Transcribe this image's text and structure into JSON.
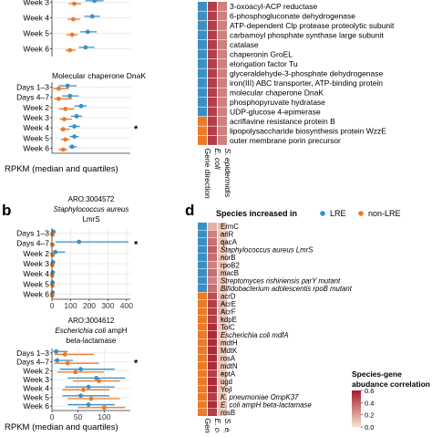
{
  "panel_labels": {
    "b": "b",
    "d": "d"
  },
  "rpkm_label": "RPKM (median and quartiles)",
  "gene_direction_label": "Gene direction",
  "heatmap_column_labels": [
    "E. coli",
    "S. epidermidis"
  ],
  "heatmap_column_labels_bottom": [
    "E. coli",
    "S. epide"
  ],
  "gene_direction_label_bottom": "Gene di",
  "colors": {
    "lre": "#3b8fc4",
    "non_lre": "#ec7a27",
    "grid": "#ebebeb",
    "heat_low": "#f3dcc4",
    "heat_high": "#a01c2c"
  },
  "chart_data": [
    {
      "type": "scatter",
      "title": "",
      "categories": [
        "Week 3",
        "Week 4",
        "Week 5",
        "Week 6"
      ],
      "series": [
        {
          "name": "LRE",
          "values": [
            380,
            360,
            320,
            300
          ],
          "low": [
            300,
            290,
            250,
            240
          ],
          "high": [
            460,
            430,
            400,
            380
          ]
        },
        {
          "name": "non-LRE",
          "values": [
            200,
            190,
            180,
            160
          ],
          "low": [
            150,
            140,
            130,
            120
          ],
          "high": [
            260,
            250,
            230,
            210
          ]
        }
      ],
      "xlim": [
        0,
        700
      ]
    },
    {
      "type": "scatter",
      "title": "Molecular chaperone DnaK",
      "categories": [
        "Days 1–3",
        "Days 4–7",
        "Week 2",
        "Week 3",
        "Week 4",
        "Week 5",
        "Week 6"
      ],
      "series": [
        {
          "name": "LRE",
          "values": [
            140,
            160,
            260,
            220,
            200,
            200,
            180
          ],
          "low": [
            60,
            90,
            200,
            170,
            150,
            160,
            150
          ],
          "high": [
            220,
            240,
            310,
            270,
            250,
            240,
            220
          ]
        },
        {
          "name": "non-LRE",
          "values": [
            60,
            60,
            120,
            110,
            100,
            120,
            100
          ],
          "low": [
            10,
            20,
            60,
            70,
            70,
            80,
            60
          ],
          "high": [
            150,
            180,
            200,
            180,
            160,
            160,
            140
          ]
        }
      ],
      "markers": [
        "",
        "",
        "",
        "",
        "*",
        "",
        ""
      ],
      "xlim": [
        0,
        700
      ]
    },
    {
      "type": "scatter",
      "title": "ARO:3004572",
      "subtitle": "Staphylococcus aureus",
      "gene": "LmrS",
      "categories": [
        "Days 1–3",
        "Days 4–7",
        "Week 2",
        "Week 3",
        "Week 4",
        "Week 5",
        "Week 6"
      ],
      "series": [
        {
          "name": "LRE",
          "values": [
            8,
            145,
            18,
            6,
            5,
            4,
            4
          ],
          "low": [
            2,
            20,
            4,
            2,
            1,
            1,
            1
          ],
          "high": [
            18,
            410,
            70,
            14,
            10,
            8,
            8
          ]
        },
        {
          "name": "non-LRE",
          "values": [
            3,
            3,
            4,
            2,
            2,
            3,
            2
          ],
          "low": [
            1,
            1,
            1,
            1,
            1,
            1,
            1
          ],
          "high": [
            6,
            10,
            8,
            5,
            5,
            6,
            5
          ]
        }
      ],
      "markers": [
        "",
        "*",
        "",
        "",
        "",
        "",
        ""
      ],
      "xticks": [
        0,
        100,
        200,
        300,
        400
      ],
      "xlim": [
        0,
        420
      ]
    },
    {
      "type": "scatter",
      "title": "ARO:3004612",
      "subtitle": "Escherichia coli",
      "gene": "ampH",
      "gene_suffix": "beta-lactamase",
      "categories": [
        "Days 1–3",
        "Days 4–7",
        "Week 2",
        "Week 3",
        "Week 4",
        "Week 5",
        "Week 6"
      ],
      "series": [
        {
          "name": "LRE",
          "values": [
            8,
            10,
            55,
            85,
            70,
            55,
            70
          ],
          "low": [
            2,
            3,
            15,
            30,
            25,
            20,
            30
          ],
          "high": [
            30,
            40,
            120,
            140,
            120,
            110,
            120
          ]
        },
        {
          "name": "non-LRE",
          "values": [
            25,
            30,
            45,
            90,
            60,
            75,
            100
          ],
          "low": [
            5,
            5,
            10,
            40,
            20,
            30,
            50
          ],
          "high": [
            80,
            90,
            100,
            130,
            110,
            130,
            140
          ]
        }
      ],
      "markers": [
        "",
        "*",
        "",
        "",
        "",
        "",
        ""
      ],
      "xticks": [
        0,
        50,
        100
      ],
      "xlim": [
        0,
        150
      ]
    },
    {
      "type": "heatmap",
      "rows": [
        {
          "label": "3-oxoacyl-ACP reductase",
          "direction": "LRE",
          "values": [
            0.5,
            0.3
          ]
        },
        {
          "label": "6-phosphogluconate dehydrogenase",
          "direction": "LRE",
          "values": [
            0.5,
            0.3
          ]
        },
        {
          "label": "ATP-dependent Clp protease proteolytic subunit",
          "direction": "LRE",
          "values": [
            0.5,
            0.3
          ]
        },
        {
          "label": "carbamoyl phosphate synthase large subunit",
          "direction": "LRE",
          "values": [
            0.5,
            0.3
          ]
        },
        {
          "label": "catalase",
          "direction": "LRE",
          "values": [
            0.5,
            0.3
          ]
        },
        {
          "label": "chaperonin GroEL",
          "direction": "LRE",
          "values": [
            0.5,
            0.3
          ]
        },
        {
          "label": "elongation factor Tu",
          "direction": "LRE",
          "values": [
            0.5,
            0.3
          ]
        },
        {
          "label": "glyceraldehyde-3-phosphate dehydrogenase",
          "direction": "LRE",
          "values": [
            0.5,
            0.3
          ]
        },
        {
          "label": "iron(III) ABC transporter, ATP-binding protein",
          "direction": "LRE",
          "values": [
            0.5,
            0.3
          ]
        },
        {
          "label": "molecular chaperone DnaK",
          "direction": "LRE",
          "values": [
            0.5,
            0.3
          ]
        },
        {
          "label": "phosphopyruvate hydratase",
          "direction": "LRE",
          "values": [
            0.5,
            0.3
          ]
        },
        {
          "label": "UDP-glucose 4-epimerase",
          "direction": "LRE",
          "values": [
            0.5,
            0.3
          ]
        },
        {
          "label": "acriflavine resistance protein B",
          "direction": "non-LRE",
          "values": [
            0.5,
            0.3
          ]
        },
        {
          "label": "lipopolysaccharide biosynthesis protein WzzE",
          "direction": "non-LRE",
          "values": [
            0.5,
            0.3
          ]
        },
        {
          "label": "outer membrane porin precursor",
          "direction": "non-LRE",
          "values": [
            0.5,
            0.3
          ]
        }
      ]
    },
    {
      "type": "heatmap",
      "legend_title": "Species increased in",
      "legend_items": [
        "LRE",
        "non-LRE"
      ],
      "rows": [
        {
          "label": "ErmC",
          "direction": "LRE",
          "values": [
            0.15,
            0.1
          ],
          "marks": [
            "",
            ""
          ]
        },
        {
          "label": "arlR",
          "direction": "LRE",
          "values": [
            0.3,
            0.1
          ],
          "marks": [
            "",
            "*"
          ]
        },
        {
          "label": "qacA",
          "direction": "LRE",
          "values": [
            0.35,
            0.1
          ],
          "marks": [
            "",
            "*"
          ]
        },
        {
          "label": "Staphylococcus aureus LmrS",
          "direction": "LRE",
          "values": [
            0.4,
            0.1
          ],
          "marks": [
            "",
            "*"
          ]
        },
        {
          "label": "norB",
          "direction": "LRE",
          "values": [
            0.35,
            0.1
          ],
          "marks": [
            "",
            "*"
          ]
        },
        {
          "label": "rpoB2",
          "direction": "LRE",
          "values": [
            0.3,
            0.1
          ],
          "marks": [
            "",
            ""
          ]
        },
        {
          "label": "macB",
          "direction": "LRE",
          "values": [
            0.35,
            0.1
          ],
          "marks": [
            "",
            ""
          ]
        },
        {
          "label": "Streptomyces rishiriensis parY mutant",
          "direction": "LRE",
          "values": [
            0.3,
            0.1
          ],
          "marks": [
            "",
            ""
          ]
        },
        {
          "label": "Bifidobacterium adolescentis rpoB mutant",
          "direction": "LRE",
          "values": [
            0.35,
            0.1
          ],
          "marks": [
            "",
            ""
          ]
        },
        {
          "label": "acrD",
          "direction": "non-LRE",
          "values": [
            0.45,
            0.1
          ],
          "marks": [
            "",
            ""
          ]
        },
        {
          "label": "AcrE",
          "direction": "non-LRE",
          "values": [
            0.5,
            0.15
          ],
          "marks": [
            "",
            "*"
          ]
        },
        {
          "label": "AcrF",
          "direction": "non-LRE",
          "values": [
            0.5,
            0.15
          ],
          "marks": [
            "",
            "*"
          ]
        },
        {
          "label": "kdpE",
          "direction": "non-LRE",
          "values": [
            0.5,
            0.1
          ],
          "marks": [
            "",
            "*"
          ]
        },
        {
          "label": "TolC",
          "direction": "non-LRE",
          "values": [
            0.55,
            0.1
          ],
          "marks": [
            "",
            ""
          ]
        },
        {
          "label": "Escherichia coli mdfA",
          "direction": "non-LRE",
          "values": [
            0.55,
            0.1
          ],
          "marks": [
            "",
            ""
          ]
        },
        {
          "label": "mdtH",
          "direction": "non-LRE",
          "values": [
            0.55,
            0.1
          ],
          "marks": [
            "",
            ""
          ]
        },
        {
          "label": "MdtK",
          "direction": "non-LRE",
          "values": [
            0.55,
            0.1
          ],
          "marks": [
            "",
            ""
          ]
        },
        {
          "label": "rosA",
          "direction": "non-LRE",
          "values": [
            0.55,
            0.1
          ],
          "marks": [
            "",
            ""
          ]
        },
        {
          "label": "mdtN",
          "direction": "non-LRE",
          "values": [
            0.55,
            0.1
          ],
          "marks": [
            "",
            ""
          ]
        },
        {
          "label": "eptA",
          "direction": "non-LRE",
          "values": [
            0.5,
            0.1
          ],
          "marks": [
            "",
            "*"
          ]
        },
        {
          "label": "ugd",
          "direction": "non-LRE",
          "values": [
            0.55,
            0.1
          ],
          "marks": [
            "",
            ""
          ]
        },
        {
          "label": "YojI",
          "direction": "non-LRE",
          "values": [
            0.55,
            0.1
          ],
          "marks": [
            "",
            ""
          ]
        },
        {
          "label": "K. pneumoniae OmpK37",
          "direction": "non-LRE",
          "values": [
            0.5,
            0.1
          ],
          "marks": [
            "",
            ""
          ]
        },
        {
          "label": "E. coli ampH beta-lactamase",
          "direction": "non-LRE",
          "values": [
            0.55,
            0.1
          ],
          "marks": [
            "",
            ""
          ]
        },
        {
          "label": "rosB",
          "direction": "non-LRE",
          "values": [
            0.5,
            0.1
          ],
          "marks": [
            "",
            ""
          ]
        }
      ],
      "colorbar": {
        "title": "Species-gene abudance correlation",
        "ticks": [
          0.0,
          0.2,
          0.4,
          0.6
        ],
        "range": [
          0,
          0.6
        ]
      }
    }
  ]
}
